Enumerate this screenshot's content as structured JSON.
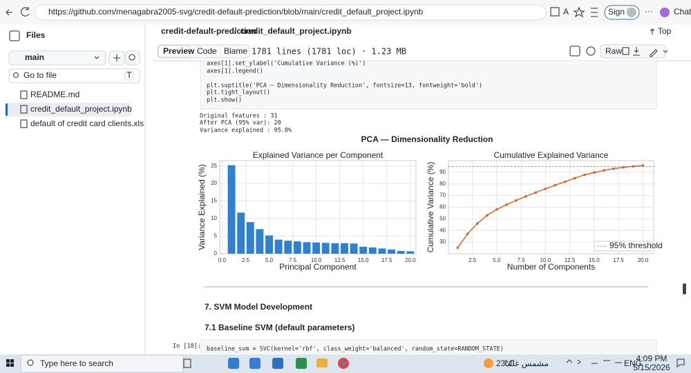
{
  "browser": {
    "url": "https://github.com/menagabra2005-svg/credit-default-prediction/blob/main/credit_default_project.ipynb",
    "sign_in": "Sign in",
    "chat": "Chat"
  },
  "sidebar": {
    "title": "Files",
    "branch": "main",
    "search": "Go to file",
    "shortcut": "T",
    "files": [
      "README.md",
      "credit_default_project.ipynb",
      "default of credit card clients.xls"
    ]
  },
  "file_header": {
    "repo": "credit-default-prediction",
    "separator": "/",
    "file": "credit_default_project.ipynb",
    "top": "Top",
    "tabs": [
      "Preview",
      "Code",
      "Blame"
    ],
    "stats": "1781 lines (1781 loc) · 1.23 MB",
    "raw": "Raw"
  },
  "notebook": {
    "code_top": [
      [
        "axes[1].set_ylabel('Cumulative Variance (%)')",
        "axes[1].legend()"
      ],
      [
        "plt.suptitle('PCA — Dimensionality Reduction', fontsize=13, fontweight='bold')",
        "plt.tight_layout()",
        "plt.show()"
      ]
    ],
    "output": [
      "Original features : 31",
      "After PCA (95% var): 20",
      "Variance explained : 95.8%"
    ],
    "figure_title": "PCA — Dimensionality Reduction",
    "heading": "7. SVM Model Development",
    "subheading": "7.1 Baseline SVM (default parameters)",
    "prompt": "In [18]:",
    "code": "baseline_svm = SVC(kernel='rbf', class_weight='balanced', random_state=RANDOM_STATE)"
  },
  "chart_data": [
    {
      "type": "bar",
      "title": "Explained Variance per Component",
      "x_label": "Principal Component",
      "y_label": "Variance Explained (%)",
      "x": [
        1,
        2,
        3,
        4,
        5,
        6,
        7,
        8,
        9,
        10,
        11,
        12,
        13,
        14,
        15,
        16,
        17,
        18,
        19,
        20
      ],
      "values": [
        25.2,
        11.7,
        9.0,
        7.0,
        5.2,
        4.0,
        3.7,
        3.5,
        3.3,
        3.2,
        3.1,
        3.0,
        3.0,
        2.9,
        2.0,
        1.8,
        1.5,
        1.2,
        0.8,
        0.7
      ],
      "color": "#2f80d1",
      "xlim": [
        -0.25,
        20.6
      ],
      "ylim": [
        0,
        26.5
      ],
      "xticks": [
        {
          "value": 0,
          "label": "0.0"
        },
        2.5,
        {
          "value": 5,
          "label": "5.0"
        },
        7.5,
        {
          "value": 10,
          "label": "10.0"
        },
        12.5,
        {
          "value": 15,
          "label": "15.0"
        },
        17.5,
        {
          "value": 20,
          "label": "20.0"
        }
      ],
      "yticks": [
        0,
        5,
        10,
        15,
        20,
        25
      ],
      "grid": true
    },
    {
      "type": "line",
      "title": "Cumulative Explained Variance",
      "x_label": "Number of Components",
      "y_label": "Cumulative Variance (%)",
      "x": [
        1,
        2,
        3,
        4,
        5,
        6,
        7,
        8,
        9,
        10,
        11,
        12,
        13,
        14,
        15,
        16,
        17,
        18,
        19,
        20
      ],
      "values": [
        25.2,
        36.9,
        45.9,
        52.9,
        58.1,
        62.1,
        65.8,
        69.3,
        72.6,
        75.8,
        78.9,
        81.9,
        84.9,
        87.8,
        89.8,
        91.6,
        93.1,
        94.3,
        95.1,
        95.8
      ],
      "color": "#d9622b",
      "xlim": [
        0.05,
        21.1
      ],
      "ylim": [
        20,
        100
      ],
      "xticks": [
        2.5,
        {
          "value": 5,
          "label": "5.0"
        },
        7.5,
        {
          "value": 10,
          "label": "10.0"
        },
        12.5,
        {
          "value": 15,
          "label": "15.0"
        },
        17.5,
        {
          "value": 20,
          "label": "20.0"
        }
      ],
      "yticks": [
        30,
        40,
        50,
        60,
        70,
        80,
        90
      ],
      "grid": true,
      "threshold": {
        "value": 95,
        "label": "95% threshold",
        "color": "#999999"
      },
      "legend": "lower right"
    }
  ],
  "taskbar": {
    "search": "Type here to search",
    "temperature": "23°C",
    "weather": "مشمس غالبا",
    "language": "ENG",
    "time": "4:09 PM",
    "date": "5/15/2026"
  }
}
